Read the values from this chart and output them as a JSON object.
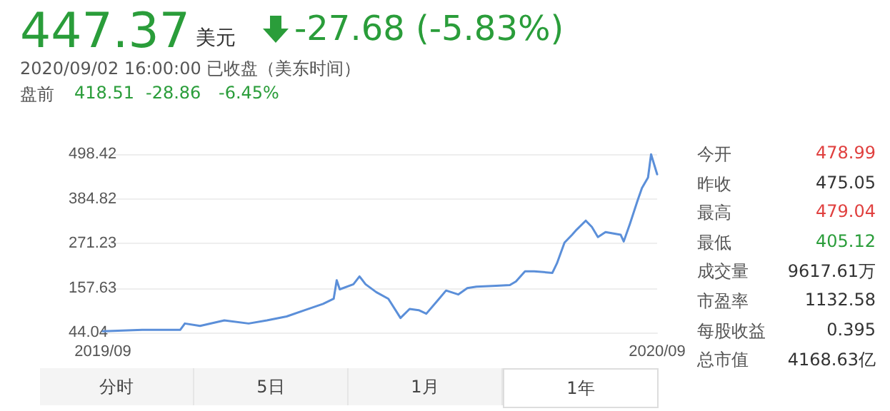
{
  "chart_data": {
    "type": "line",
    "annotations": [
      "447.37",
      "美元",
      "-27.68 (-5.83%)",
      "2020/09/02 16:00:00 已收盘（美东时间）",
      "盘前",
      "418.51",
      "-28.86",
      "-6.45%",
      "今开",
      "478.99",
      "昨收",
      "475.05",
      "最高",
      "479.04",
      "最低",
      "405.12",
      "成交量",
      "9617.61万",
      "市盈率",
      "1132.58",
      "每股收益",
      "0.395",
      "总市值",
      "4168.63亿",
      "分时",
      "5日",
      "1月",
      "1年"
    ],
    "x": [
      "2019-09-03",
      "2019-09-29",
      "2019-10-24",
      "2019-10-27",
      "2019-11-06",
      "2019-11-22",
      "2019-12-08",
      "2019-12-20",
      "2020-01-02",
      "2020-01-14",
      "2020-01-26",
      "2020-02-02",
      "2020-02-04",
      "2020-02-06",
      "2020-02-15",
      "2020-02-19",
      "2020-02-23",
      "2020-03-01",
      "2020-03-09",
      "2020-03-17",
      "2020-03-23",
      "2020-03-29",
      "2020-04-03",
      "2020-04-11",
      "2020-04-16",
      "2020-04-24",
      "2020-04-30",
      "2020-05-06",
      "2020-05-19",
      "2020-05-28",
      "2020-06-01",
      "2020-06-07",
      "2020-06-13",
      "2020-06-25",
      "2020-06-28",
      "2020-07-03",
      "2020-07-08",
      "2020-07-11",
      "2020-07-17",
      "2020-07-21",
      "2020-07-25",
      "2020-07-30",
      "2020-08-09",
      "2020-08-11",
      "2020-08-15",
      "2020-08-20",
      "2020-08-23",
      "2020-08-27",
      "2020-08-29",
      "2020-09-02"
    ],
    "series": [
      {
        "color": "#5b8fd9",
        "values": [
          47,
          51,
          51,
          67,
          61,
          75,
          67,
          75,
          85,
          101,
          117,
          130,
          177,
          154,
          167,
          187,
          167,
          147,
          130,
          81,
          104,
          101,
          92,
          128,
          151,
          141,
          157,
          161,
          163,
          165,
          174,
          200,
          200,
          196,
          220,
          273,
          293,
          306,
          329,
          313,
          287,
          300,
          293,
          276,
          320,
          379,
          412,
          439,
          498,
          447
        ]
      }
    ],
    "xlim": [
      "2019-09-03",
      "2020-09-02"
    ],
    "xticks": [
      {
        "value": "2019-09-03",
        "label": "2019/09"
      },
      {
        "value": "2020-09-02",
        "label": "2020/09"
      }
    ],
    "ylim": [
      44.04,
      498.42
    ],
    "yticks": [
      44.04,
      157.63,
      271.23,
      384.82,
      498.42
    ],
    "grid": "y",
    "marker": "none",
    "line_style": "solid"
  }
}
